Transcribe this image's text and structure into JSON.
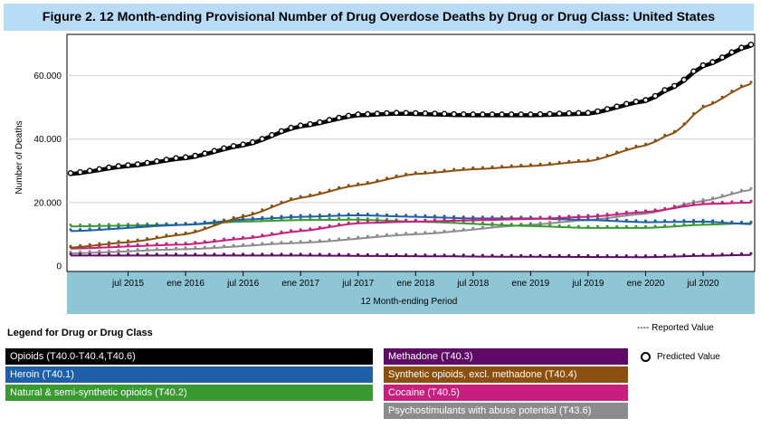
{
  "figure_title": "Figure 2. 12 Month-ending Provisional Number of Drug Overdose Deaths by Drug or Drug Class: United States",
  "legend": {
    "title": "Legend for Drug or Drug Class",
    "reported_note": "---- Reported Value",
    "predicted_note": "Predicted Value"
  },
  "colors": {
    "title_bg": "#b9dcf6",
    "axis_band": "#8ec6d6",
    "opioids": "#000000",
    "heroin": "#1f60a8",
    "natural": "#3a9a32",
    "methadone": "#5e0a66",
    "synthetic": "#8b4f10",
    "cocaine": "#c71f7e",
    "psychostimulants": "#8c8c8c"
  },
  "chart_data": {
    "type": "line",
    "title": "12 Month-ending Provisional Number of Drug Overdose Deaths by Drug or Drug Class: United States",
    "xlabel": "12 Month-ending Period",
    "ylabel": "Number of Deaths",
    "x_start": "2015-01",
    "x_end": "2020-12",
    "ylim": [
      0,
      73000
    ],
    "y_ticks": [
      0,
      20000,
      40000,
      60000
    ],
    "y_tick_labels": [
      "0",
      "20.000",
      "40.000",
      "60.000"
    ],
    "x_tick_labels": [
      {
        "label": "jul 2015",
        "month": "2015-07"
      },
      {
        "label": "ene 2016",
        "month": "2016-01"
      },
      {
        "label": "jul 2016",
        "month": "2016-07"
      },
      {
        "label": "ene 2017",
        "month": "2017-01"
      },
      {
        "label": "jul 2017",
        "month": "2017-07"
      },
      {
        "label": "ene 2018",
        "month": "2018-01"
      },
      {
        "label": "jul 2018",
        "month": "2018-07"
      },
      {
        "label": "ene 2019",
        "month": "2019-01"
      },
      {
        "label": "jul 2019",
        "month": "2019-07"
      },
      {
        "label": "ene 2020",
        "month": "2020-01"
      },
      {
        "label": "jul 2020",
        "month": "2020-07"
      }
    ],
    "series": [
      {
        "key": "psychostimulants",
        "name": "Psychostimulants with abuse potential (T43.6)",
        "anchors": [
          [
            "2015-01",
            4000
          ],
          [
            "2016-01",
            5300
          ],
          [
            "2017-01",
            7300
          ],
          [
            "2018-01",
            10000
          ],
          [
            "2019-01",
            13000
          ],
          [
            "2019-07",
            14500
          ],
          [
            "2020-01",
            16500
          ],
          [
            "2020-07",
            20500
          ],
          [
            "2020-12",
            24000
          ]
        ]
      },
      {
        "key": "natural",
        "name": "Natural & semi-synthetic opioids (T40.2)",
        "anchors": [
          [
            "2015-01",
            12500
          ],
          [
            "2016-01",
            13000
          ],
          [
            "2016-07",
            14000
          ],
          [
            "2017-01",
            14500
          ],
          [
            "2017-07",
            14600
          ],
          [
            "2018-01",
            14000
          ],
          [
            "2019-01",
            12600
          ],
          [
            "2019-07",
            12000
          ],
          [
            "2020-01",
            12000
          ],
          [
            "2020-07",
            13000
          ],
          [
            "2020-12",
            13500
          ]
        ]
      },
      {
        "key": "heroin",
        "name": "Heroin (T40.1)",
        "anchors": [
          [
            "2015-01",
            11000
          ],
          [
            "2016-01",
            13000
          ],
          [
            "2016-07",
            14600
          ],
          [
            "2017-01",
            15500
          ],
          [
            "2017-07",
            16000
          ],
          [
            "2018-01",
            15500
          ],
          [
            "2018-07",
            15000
          ],
          [
            "2019-01",
            15000
          ],
          [
            "2019-07",
            14500
          ],
          [
            "2020-01",
            13800
          ],
          [
            "2020-07",
            14000
          ],
          [
            "2020-12",
            13200
          ]
        ]
      },
      {
        "key": "cocaine",
        "name": "Cocaine (T40.5)",
        "anchors": [
          [
            "2015-01",
            5500
          ],
          [
            "2016-01",
            6800
          ],
          [
            "2016-07",
            8600
          ],
          [
            "2017-01",
            11000
          ],
          [
            "2017-07",
            13500
          ],
          [
            "2018-01",
            14000
          ],
          [
            "2018-07",
            14400
          ],
          [
            "2019-01",
            14800
          ],
          [
            "2019-07",
            15500
          ],
          [
            "2020-01",
            17000
          ],
          [
            "2020-07",
            19500
          ],
          [
            "2020-12",
            20000
          ]
        ]
      },
      {
        "key": "synthetic",
        "name": "Synthetic opioids, excl. methadone (T40.4)",
        "anchors": [
          [
            "2015-01",
            5800
          ],
          [
            "2015-07",
            7500
          ],
          [
            "2016-01",
            10000
          ],
          [
            "2016-07",
            15500
          ],
          [
            "2017-01",
            21500
          ],
          [
            "2017-07",
            25500
          ],
          [
            "2018-01",
            29000
          ],
          [
            "2018-07",
            30500
          ],
          [
            "2019-01",
            31500
          ],
          [
            "2019-07",
            33000
          ],
          [
            "2020-01",
            38000
          ],
          [
            "2020-04",
            42000
          ],
          [
            "2020-07",
            50000
          ],
          [
            "2020-12",
            57500
          ]
        ]
      },
      {
        "key": "methadone",
        "name": "Methadone (T40.3)",
        "anchors": [
          [
            "2015-01",
            3300
          ],
          [
            "2016-01",
            3300
          ],
          [
            "2017-01",
            3300
          ],
          [
            "2018-01",
            3100
          ],
          [
            "2019-01",
            2900
          ],
          [
            "2020-01",
            2800
          ],
          [
            "2020-07",
            3200
          ],
          [
            "2020-12",
            3500
          ]
        ]
      },
      {
        "key": "opioids",
        "name": "Opioids (T40.0-T40.4,T40.6)",
        "anchors": [
          [
            "2015-01",
            29000
          ],
          [
            "2015-07",
            31500
          ],
          [
            "2016-01",
            34000
          ],
          [
            "2016-07",
            38000
          ],
          [
            "2017-01",
            44000
          ],
          [
            "2017-07",
            47500
          ],
          [
            "2017-11",
            48000
          ],
          [
            "2018-07",
            47500
          ],
          [
            "2019-01",
            47500
          ],
          [
            "2019-07",
            48000
          ],
          [
            "2020-01",
            52000
          ],
          [
            "2020-04",
            56500
          ],
          [
            "2020-07",
            63000
          ],
          [
            "2020-12",
            69500
          ]
        ]
      }
    ]
  },
  "legend_items": [
    {
      "key": "opioids",
      "label": "Opioids (T40.0-T40.4,T40.6)"
    },
    {
      "key": "heroin",
      "label": "Heroin (T40.1)"
    },
    {
      "key": "natural",
      "label": "Natural & semi-synthetic opioids (T40.2)"
    },
    {
      "key": "methadone",
      "label": "Methadone (T40.3)"
    },
    {
      "key": "synthetic",
      "label": "Synthetic opioids, excl. methadone (T40.4)"
    },
    {
      "key": "cocaine",
      "label": "Cocaine (T40.5)"
    },
    {
      "key": "psychostimulants",
      "label": "Psychostimulants with abuse potential (T43.6)"
    }
  ]
}
